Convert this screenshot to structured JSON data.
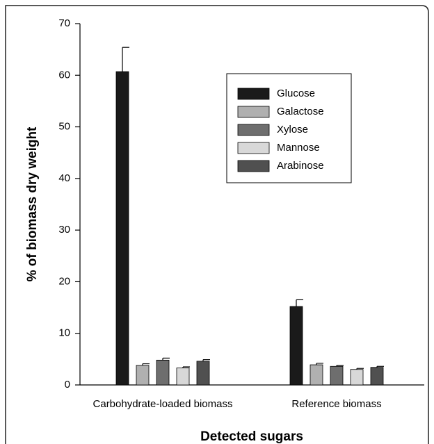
{
  "chart_data": {
    "type": "bar",
    "xlabel": "Detected sugars",
    "ylabel": "% of biomass dry weight",
    "categories": [
      "Carbohydrate-loaded biomass",
      "Reference biomass"
    ],
    "series": [
      {
        "name": "Glucose",
        "color": "#1a1a1a",
        "values": [
          60.7,
          15.2
        ],
        "errors": [
          4.7,
          1.3
        ]
      },
      {
        "name": "Galactose",
        "color": "#b0b0b0",
        "values": [
          3.8,
          3.9
        ],
        "errors": [
          0.3,
          0.3
        ]
      },
      {
        "name": "Xylose",
        "color": "#6e6e6e",
        "values": [
          4.8,
          3.6
        ],
        "errors": [
          0.4,
          0.2
        ]
      },
      {
        "name": "Mannose",
        "color": "#d8d8d8",
        "values": [
          3.3,
          3.0
        ],
        "errors": [
          0.2,
          0.2
        ]
      },
      {
        "name": "Arabinose",
        "color": "#505050",
        "values": [
          4.6,
          3.4
        ],
        "errors": [
          0.3,
          0.2
        ]
      }
    ],
    "ylim": [
      0,
      70
    ],
    "yticks": [
      0,
      10,
      20,
      30,
      40,
      50,
      60,
      70
    ],
    "grid": false,
    "legend": "upper right"
  }
}
